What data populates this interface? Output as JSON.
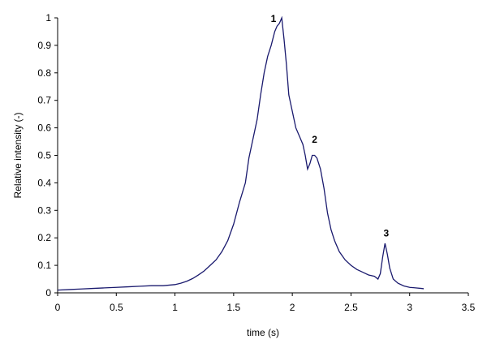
{
  "chart_data": {
    "type": "line",
    "title": "",
    "xlabel": "time (s)",
    "ylabel": "Relative intensity (-)",
    "xlim": [
      0,
      3.5
    ],
    "ylim": [
      0,
      1
    ],
    "xticks": [
      "0",
      "0.5",
      "1",
      "1.5",
      "2",
      "2.5",
      "3",
      "3.5"
    ],
    "yticks": [
      "0",
      "0.1",
      "0.2",
      "0.3",
      "0.4",
      "0.5",
      "0.6",
      "0.7",
      "0.8",
      "0.9",
      "1"
    ],
    "grid": false,
    "legend": "none",
    "line_color": "#1a1a6e",
    "series": [
      {
        "x": [
          0,
          0.1,
          0.2,
          0.3,
          0.4,
          0.5,
          0.6,
          0.7,
          0.8,
          0.9,
          1.0,
          1.05,
          1.1,
          1.15,
          1.2,
          1.25,
          1.3,
          1.35,
          1.4,
          1.45,
          1.5,
          1.55,
          1.6,
          1.63,
          1.66,
          1.7,
          1.73,
          1.76,
          1.79,
          1.82,
          1.85,
          1.87,
          1.89,
          1.91,
          1.93,
          1.95,
          1.97,
          2.0,
          2.03,
          2.06,
          2.09,
          2.11,
          2.13,
          2.15,
          2.17,
          2.19,
          2.21,
          2.24,
          2.27,
          2.3,
          2.33,
          2.36,
          2.4,
          2.45,
          2.5,
          2.55,
          2.6,
          2.65,
          2.7,
          2.73,
          2.75,
          2.77,
          2.79,
          2.81,
          2.83,
          2.86,
          2.9,
          2.95,
          3.0,
          3.05,
          3.1,
          3.12
        ],
        "values": [
          0.01,
          0.012,
          0.014,
          0.016,
          0.018,
          0.02,
          0.022,
          0.024,
          0.026,
          0.026,
          0.03,
          0.035,
          0.042,
          0.052,
          0.065,
          0.08,
          0.1,
          0.12,
          0.15,
          0.19,
          0.25,
          0.33,
          0.4,
          0.49,
          0.55,
          0.63,
          0.72,
          0.8,
          0.86,
          0.9,
          0.95,
          0.97,
          0.98,
          1.0,
          0.92,
          0.83,
          0.72,
          0.66,
          0.6,
          0.57,
          0.54,
          0.5,
          0.45,
          0.47,
          0.5,
          0.5,
          0.49,
          0.45,
          0.38,
          0.29,
          0.23,
          0.19,
          0.15,
          0.12,
          0.1,
          0.085,
          0.075,
          0.065,
          0.06,
          0.05,
          0.07,
          0.13,
          0.18,
          0.14,
          0.09,
          0.05,
          0.035,
          0.025,
          0.02,
          0.018,
          0.016,
          0.015
        ]
      }
    ],
    "annotations": [
      {
        "text": "1",
        "x": 1.84,
        "y": 1.0
      },
      {
        "text": "2",
        "x": 2.19,
        "y": 0.56
      },
      {
        "text": "3",
        "x": 2.8,
        "y": 0.22
      }
    ]
  }
}
